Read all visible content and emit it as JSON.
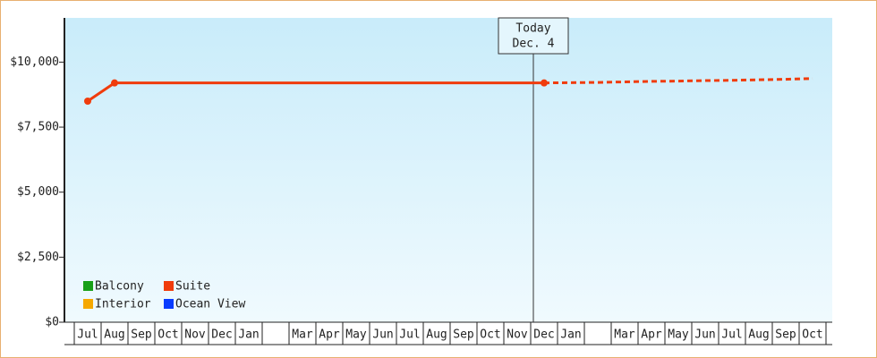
{
  "chart_data": {
    "type": "line",
    "categories": [
      "Jul",
      "Aug",
      "Sep",
      "Oct",
      "Nov",
      "Dec",
      "Jan",
      null,
      "Mar",
      "Apr",
      "May",
      "Jun",
      "Jul",
      "Aug",
      "Sep",
      "Oct",
      "Nov",
      "Dec",
      "Jan",
      null,
      "Mar",
      "Apr",
      "May",
      "Jun",
      "Jul",
      "Aug",
      "Sep",
      "Oct"
    ],
    "series": [
      {
        "name": "Balcony",
        "color": "#18a018",
        "values": [
          null,
          null,
          null,
          null,
          null,
          null,
          null,
          null,
          null,
          null,
          null,
          null,
          null,
          null,
          null,
          null,
          null,
          null,
          null,
          null,
          null,
          null,
          null,
          null,
          null,
          null,
          null,
          null
        ]
      },
      {
        "name": "Interior",
        "color": "#f5a800",
        "values": [
          null,
          null,
          null,
          null,
          null,
          null,
          null,
          null,
          null,
          null,
          null,
          null,
          null,
          null,
          null,
          null,
          null,
          null,
          null,
          null,
          null,
          null,
          null,
          null,
          null,
          null,
          null,
          null
        ]
      },
      {
        "name": "Suite",
        "color": "#f03c0c",
        "values": [
          8500,
          9200,
          9200,
          9200,
          9200,
          9200,
          9200,
          9200,
          9200,
          9200,
          9200,
          9200,
          9200,
          9200,
          9200,
          9200,
          9200,
          9200,
          null,
          null,
          null,
          null,
          null,
          null,
          null,
          null,
          null,
          null
        ]
      },
      {
        "name": "Ocean View",
        "color": "#0a3cff",
        "values": [
          null,
          null,
          null,
          null,
          null,
          null,
          null,
          null,
          null,
          null,
          null,
          null,
          null,
          null,
          null,
          null,
          null,
          null,
          null,
          null,
          null,
          null,
          null,
          null,
          null,
          null,
          null,
          null
        ]
      }
    ],
    "projection": {
      "color": "#f03c0c",
      "values": [
        null,
        null,
        null,
        null,
        null,
        null,
        null,
        null,
        null,
        null,
        null,
        null,
        null,
        null,
        null,
        null,
        null,
        9200,
        9210,
        9220,
        9240,
        9260,
        9270,
        9290,
        9300,
        9320,
        9340,
        9370
      ]
    },
    "annotation": [
      "Today",
      "Dec. 4"
    ],
    "ylim": [
      0,
      11700
    ],
    "yticks": [
      {
        "value": 0,
        "label": "$0"
      },
      {
        "value": 2500,
        "label": "$2,500"
      },
      {
        "value": 5000,
        "label": "$5,000"
      },
      {
        "value": 7500,
        "label": "$7,500"
      },
      {
        "value": 10000,
        "label": "$10,000"
      }
    ]
  }
}
